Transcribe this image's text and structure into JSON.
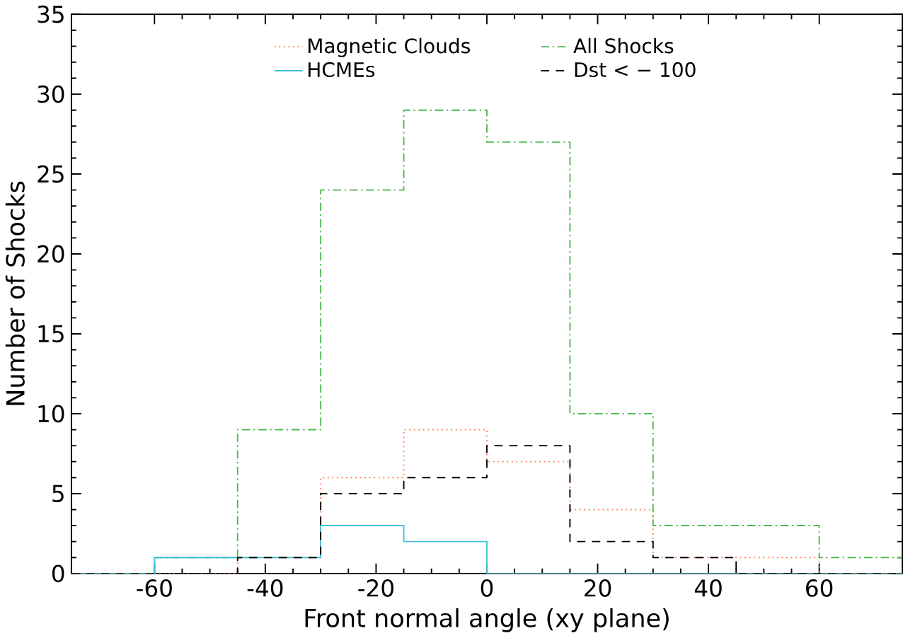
{
  "chart_data": {
    "type": "histogram",
    "xlabel": "Front normal angle (xy plane)",
    "ylabel": "Number of Shocks",
    "bins": [
      -75,
      -60,
      -45,
      -30,
      -15,
      0,
      15,
      30,
      45,
      60,
      75
    ],
    "series": [
      {
        "name": "Magnetic Clouds",
        "color": "#ff7f50",
        "line_style": "dotted",
        "values": [
          0,
          0,
          1,
          6,
          9,
          7,
          4,
          1,
          1,
          0
        ]
      },
      {
        "name": "All Shocks",
        "color": "#50b850",
        "line_style": "dashdot",
        "values": [
          0,
          1,
          9,
          24,
          29,
          27,
          10,
          3,
          3,
          1
        ]
      },
      {
        "name": "HCMEs",
        "color": "#40c0d8",
        "line_style": "solid",
        "values": [
          0,
          1,
          1,
          3,
          2,
          0,
          0,
          0,
          0,
          0
        ]
      },
      {
        "name": "Dst < − 100",
        "color": "#000000",
        "line_style": "dashed",
        "values": [
          0,
          0,
          1,
          5,
          6,
          8,
          2,
          1,
          0,
          0
        ]
      }
    ],
    "xlim": [
      -75,
      75
    ],
    "xticks": [
      -60,
      -40,
      -20,
      0,
      20,
      40,
      60
    ],
    "ylim": [
      0,
      35
    ],
    "yticks": [
      0,
      5,
      10,
      15,
      20,
      25,
      30,
      35
    ],
    "legend": "top",
    "grid": false
  }
}
